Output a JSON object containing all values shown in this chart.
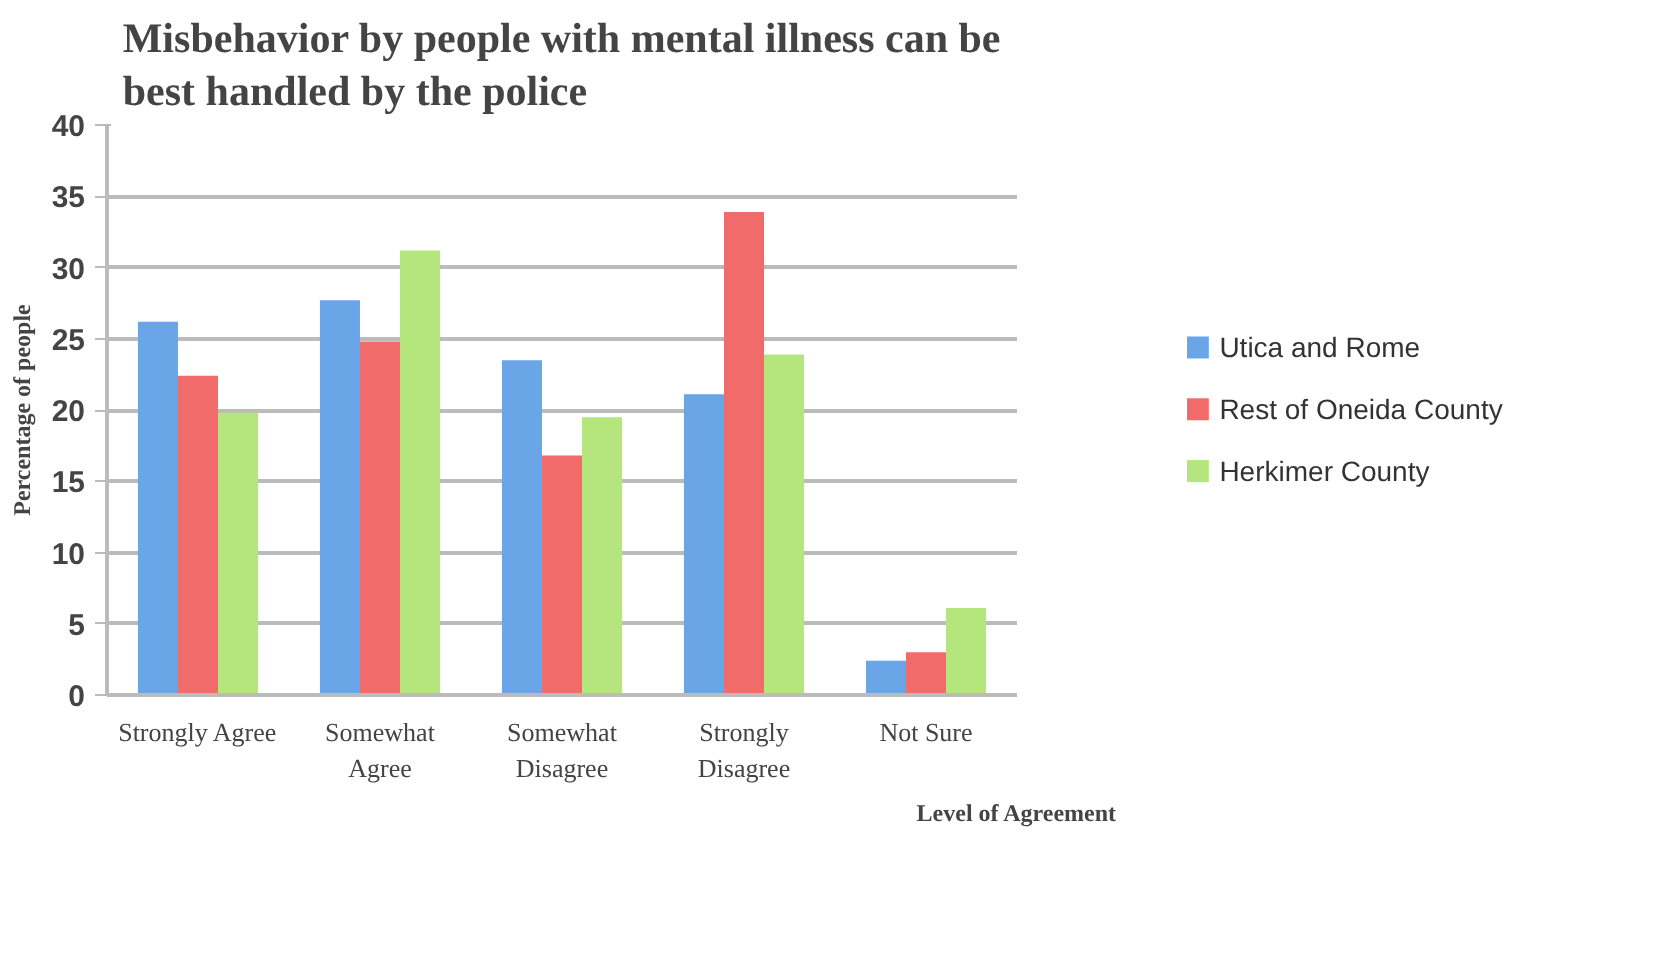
{
  "chart_data": {
    "type": "bar",
    "title": "Misbehavior by people with mental illness can be best handled by the police",
    "xlabel": "Level of Agreement",
    "ylabel": "Percentage of people",
    "categories": [
      "Strongly Agree",
      "Somewhat\nAgree",
      "Somewhat\nDisagree",
      "Strongly\nDisagree",
      "Not Sure"
    ],
    "series": [
      {
        "name": "Utica and Rome",
        "color": "#6aa5e8",
        "values": [
          26.2,
          27.7,
          23.5,
          21.1,
          2.4
        ]
      },
      {
        "name": "Rest of Oneida County",
        "color": "#f26b6b",
        "values": [
          22.4,
          24.8,
          16.8,
          33.9,
          3.0
        ]
      },
      {
        "name": "Herkimer County",
        "color": "#b5e67e",
        "values": [
          19.8,
          31.2,
          19.5,
          23.9,
          6.1
        ]
      }
    ],
    "ylim": [
      0,
      40
    ],
    "yticks": [
      0,
      5,
      10,
      15,
      20,
      25,
      30,
      35,
      40
    ],
    "grid": "y",
    "legend": "right"
  }
}
